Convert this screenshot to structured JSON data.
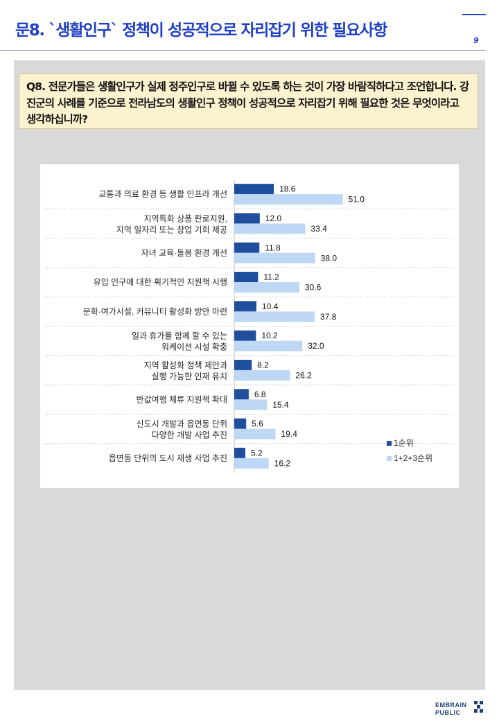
{
  "header": {
    "title": "문8. `생활인구` 정책이 성공적으로 자리잡기 위한 필요사항",
    "page_number": "9"
  },
  "question": {
    "text": "Q8. 전문가들은 생활인구가 실제 정주인구로 바뀔 수 있도록 하는 것이 가장 바람직하다고 조언합니다. 강진군의 사례를 기준으로 전라남도의 생활인구 정책이 성공적으로 자리잡기 위해 필요한 것은 무엇이라고 생각하십니까?"
  },
  "chart_data": {
    "type": "bar",
    "orientation": "horizontal",
    "categories": [
      [
        "교통과 의료 환경 등 생활 인프라 개선"
      ],
      [
        "지역특화 상품 판로지원,",
        "지역 일자리 또는 창업 기회 제공"
      ],
      [
        "자녀 교육·돌봄 환경 개선"
      ],
      [
        "유입 인구에 대한 획기적인 지원책 시행"
      ],
      [
        "문화·여가시설, 커뮤니티 활성화 방안 마련"
      ],
      [
        "일과 휴가를 함께 할 수 있는",
        "워케이션 시설 확충"
      ],
      [
        "지역 활성화 정책 제안과",
        "실행 가능한 인재 유치"
      ],
      [
        "반값여행 체류 지원책 확대"
      ],
      [
        "신도시 개발과 읍면동 단위",
        "다양한 개발 사업 추진"
      ],
      [
        "읍면동 단위의 도시 재생 사업 추진"
      ]
    ],
    "series": [
      {
        "name": "1순위",
        "color": "#1f4e9c",
        "values": [
          18.6,
          12.0,
          11.8,
          11.2,
          10.4,
          10.2,
          8.2,
          6.8,
          5.6,
          5.2
        ],
        "labels": [
          "18.6",
          "12.0",
          "11.8",
          "11.2",
          "10.4",
          "10.2",
          "8.2",
          "6.8",
          "5.6",
          "5.2"
        ]
      },
      {
        "name": "1+2+3순위",
        "color": "#bdd7f4",
        "values": [
          51.0,
          33.4,
          38.0,
          30.6,
          37.8,
          32.0,
          26.2,
          15.4,
          19.4,
          16.2
        ],
        "labels": [
          "51.0",
          "33.4",
          "38.0",
          "30.6",
          "37.8",
          "32.0",
          "26.2",
          "15.4",
          "19.4",
          "16.2"
        ]
      }
    ],
    "xlim": [
      0,
      100
    ],
    "grid": false,
    "legend_position": "bottom-right"
  },
  "brand": {
    "line1": "EMBRAIN",
    "line2": "PUBLIC"
  }
}
